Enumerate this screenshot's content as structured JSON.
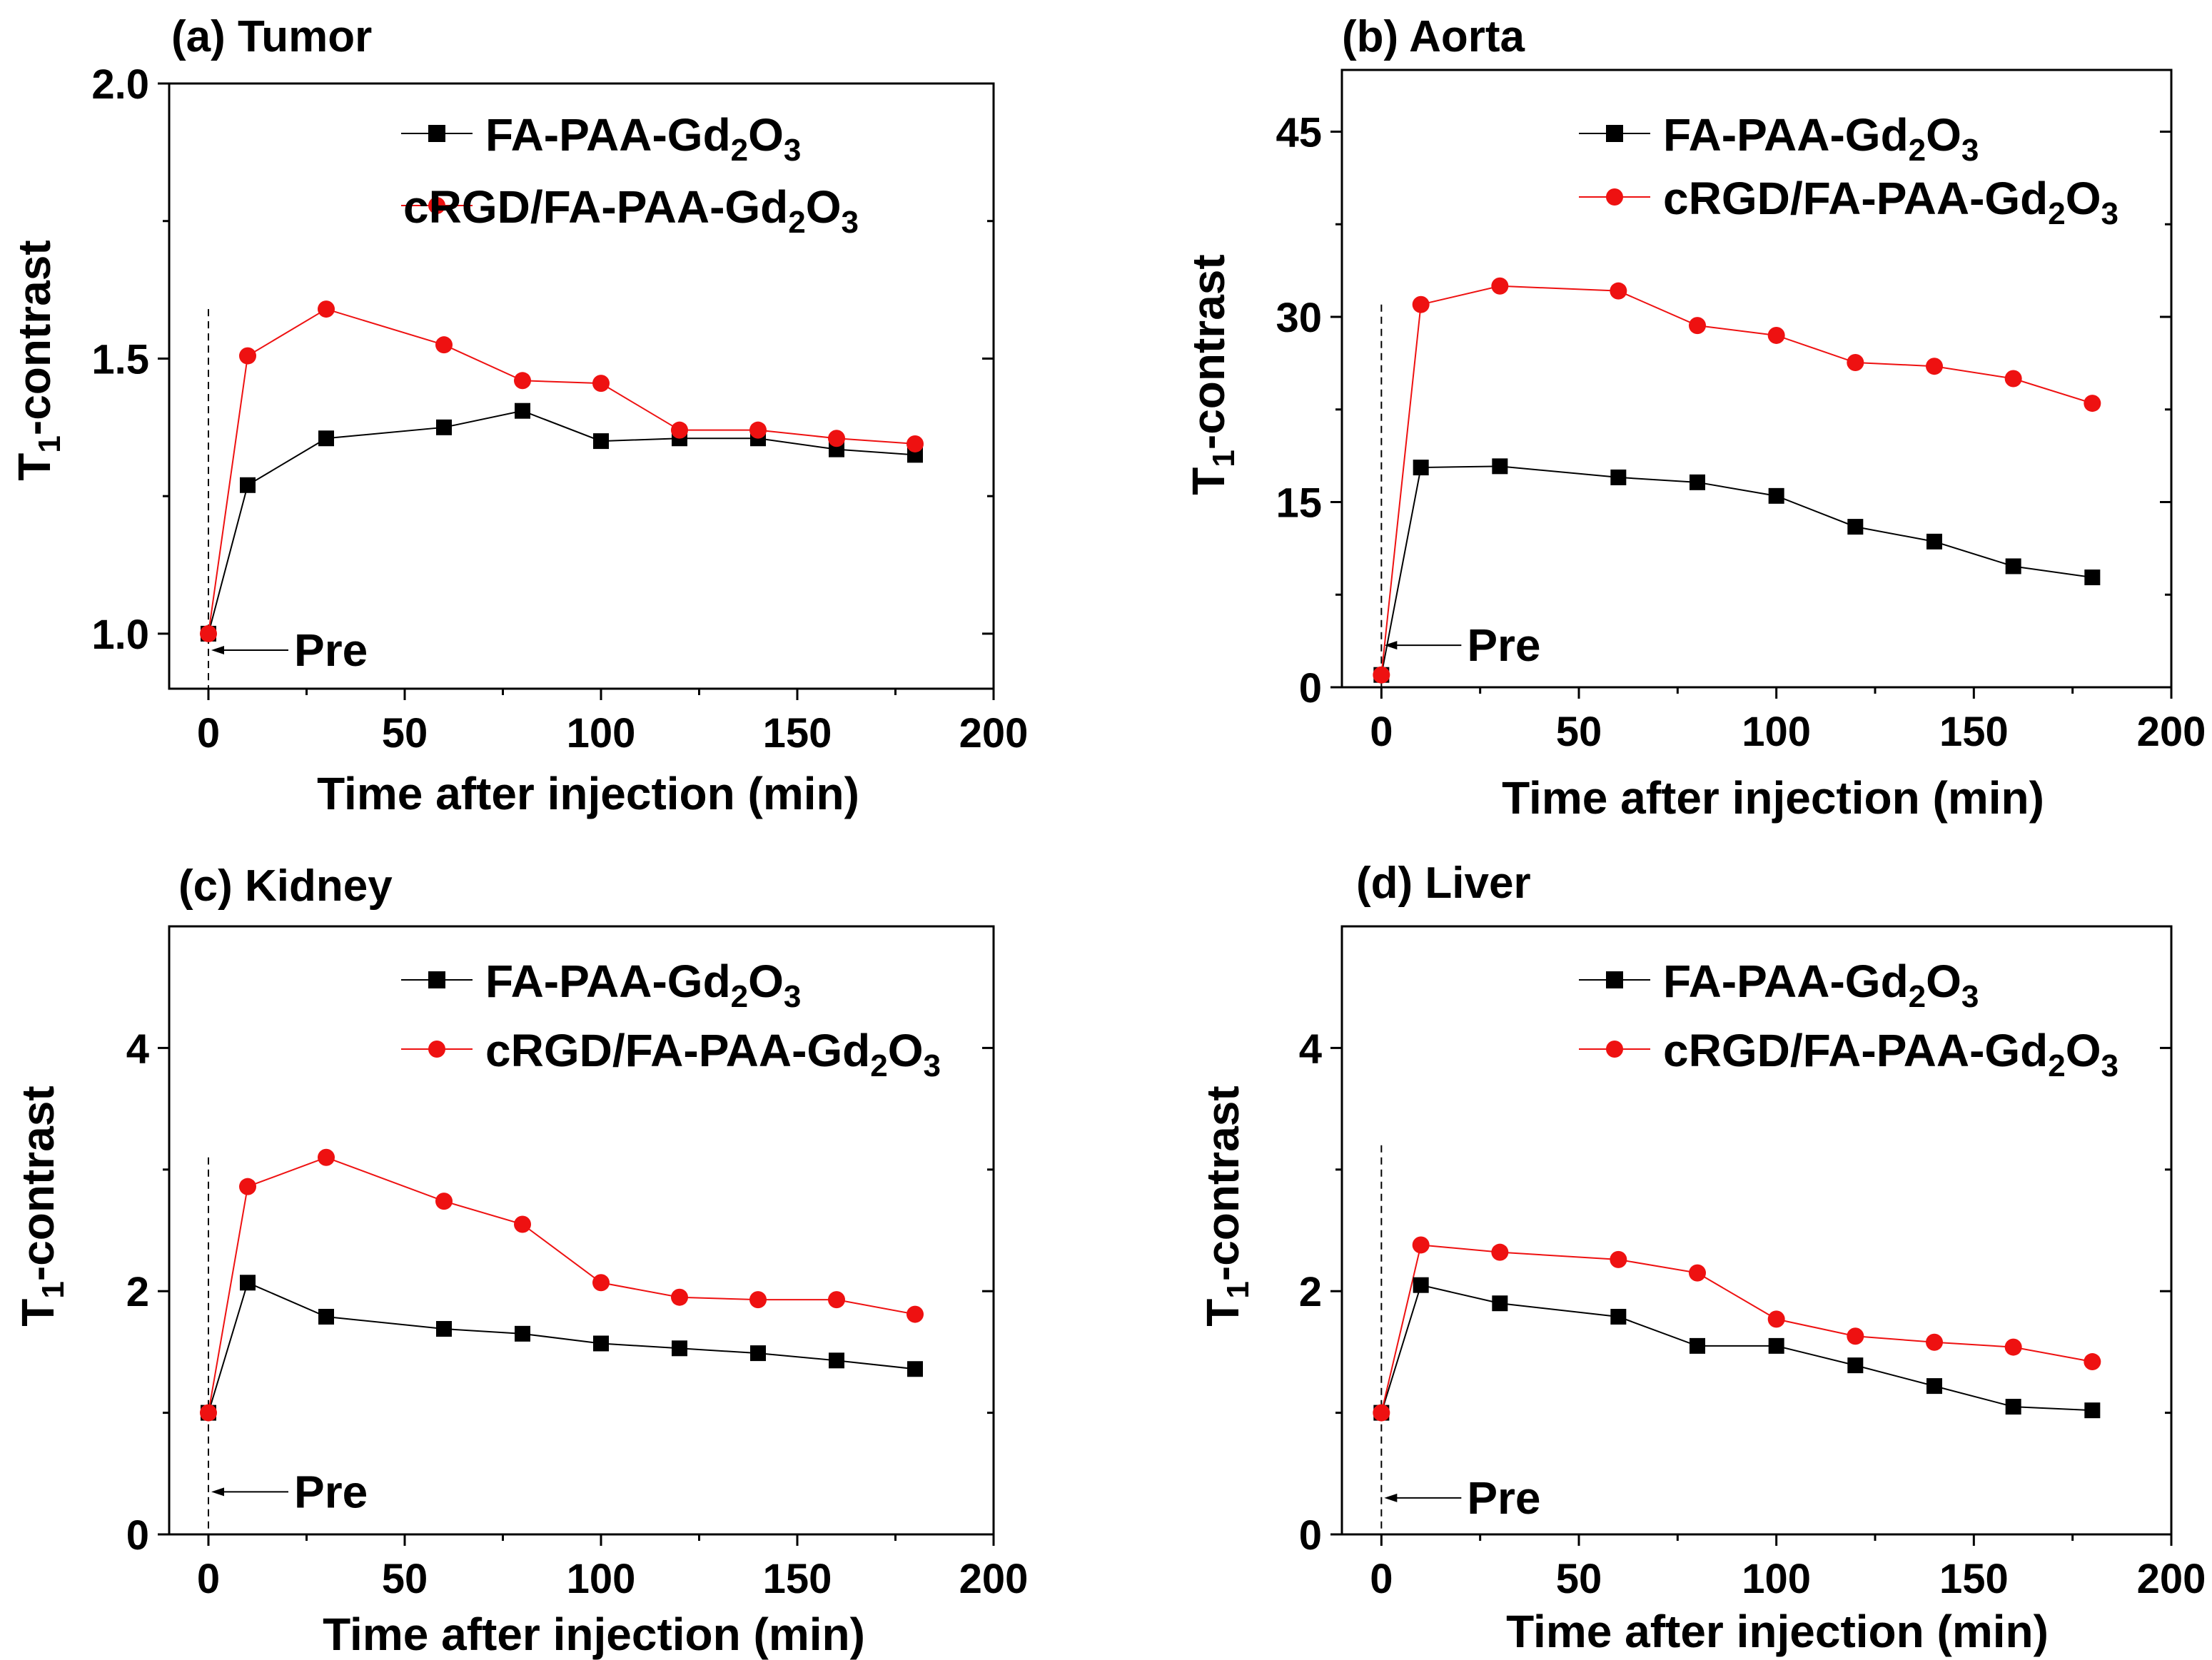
{
  "figure": {
    "series_names": [
      "FA-PAA-Gd2O3",
      "cRGD/FA-PAA-Gd2O3"
    ],
    "colors": {
      "series1": "#000000",
      "series2": "#ee1111",
      "axis": "#000000"
    }
  },
  "chart_data": [
    {
      "type": "line",
      "title": "(a) Tumor",
      "xlabel": "Time after injection (min)",
      "ylabel": "T1-contrast",
      "xlim": [
        -10,
        200
      ],
      "ylim": [
        0.9,
        2.0
      ],
      "xticks": [
        0,
        50,
        100,
        150,
        200
      ],
      "yticks": [
        1.0,
        1.5,
        2.0
      ],
      "ytick_labels": [
        "1.0",
        "1.5",
        "2.0"
      ],
      "annotation": "Pre",
      "annotation_value": [
        0,
        0.97
      ],
      "pre_line_top": 1.59,
      "legend_position": "top-right",
      "x": [
        0,
        10,
        30,
        60,
        80,
        100,
        120,
        140,
        160,
        180
      ],
      "series": [
        {
          "name": "FA-PAA-Gd2O3",
          "marker": "square",
          "values": [
            1.0,
            1.27,
            1.355,
            1.375,
            1.405,
            1.35,
            1.355,
            1.355,
            1.335,
            1.325
          ]
        },
        {
          "name": "cRGD/FA-PAA-Gd2O3",
          "marker": "circle",
          "values": [
            1.0,
            1.505,
            1.59,
            1.525,
            1.46,
            1.455,
            1.37,
            1.37,
            1.355,
            1.345
          ]
        }
      ]
    },
    {
      "type": "line",
      "title": "(b) Aorta",
      "xlabel": "Time after injection (min)",
      "ylabel": "T1-contrast",
      "xlim": [
        -10,
        200
      ],
      "ylim": [
        0,
        50
      ],
      "xticks": [
        0,
        50,
        100,
        150,
        200
      ],
      "yticks": [
        0,
        15,
        30,
        45
      ],
      "ytick_labels": [
        "0",
        "15",
        "30",
        "45"
      ],
      "annotation": "Pre",
      "annotation_value": [
        0,
        3.4
      ],
      "pre_line_top": 31,
      "legend_position": "top-right",
      "x": [
        0,
        10,
        30,
        60,
        80,
        100,
        120,
        140,
        160,
        180
      ],
      "series": [
        {
          "name": "FA-PAA-Gd2O3",
          "marker": "square",
          "values": [
            1.0,
            17.8,
            17.9,
            17.0,
            16.6,
            15.5,
            13.0,
            11.8,
            9.8,
            8.9
          ]
        },
        {
          "name": "cRGD/FA-PAA-Gd2O3",
          "marker": "circle",
          "values": [
            1.0,
            31.0,
            32.5,
            32.1,
            29.3,
            28.5,
            26.3,
            26.0,
            25.0,
            23.0
          ]
        }
      ]
    },
    {
      "type": "line",
      "title": "(c) Kidney",
      "xlabel": "Time after injection (min)",
      "ylabel": "T1-contrast",
      "xlim": [
        -10,
        200
      ],
      "ylim": [
        0,
        5
      ],
      "xticks": [
        0,
        50,
        100,
        150,
        200
      ],
      "yticks": [
        0,
        2,
        4
      ],
      "ytick_labels": [
        "0",
        "2",
        "4"
      ],
      "annotation": "Pre",
      "annotation_value": [
        0,
        0.35
      ],
      "pre_line_top": 3.1,
      "legend_position": "top-right",
      "x": [
        0,
        10,
        30,
        60,
        80,
        100,
        120,
        140,
        160,
        180
      ],
      "series": [
        {
          "name": "FA-PAA-Gd2O3",
          "marker": "square",
          "values": [
            1.0,
            2.07,
            1.79,
            1.69,
            1.65,
            1.57,
            1.53,
            1.49,
            1.43,
            1.36
          ]
        },
        {
          "name": "cRGD/FA-PAA-Gd2O3",
          "marker": "circle",
          "values": [
            1.0,
            2.86,
            3.1,
            2.74,
            2.55,
            2.07,
            1.95,
            1.93,
            1.93,
            1.81
          ]
        }
      ]
    },
    {
      "type": "line",
      "title": "(d) Liver",
      "xlabel": "Time after injection (min)",
      "ylabel": "T1-contrast",
      "xlim": [
        -10,
        200
      ],
      "ylim": [
        0,
        5
      ],
      "xticks": [
        0,
        50,
        100,
        150,
        200
      ],
      "yticks": [
        0,
        2,
        4
      ],
      "ytick_labels": [
        "0",
        "2",
        "4"
      ],
      "annotation": "Pre",
      "annotation_value": [
        0,
        0.3
      ],
      "pre_line_top": 3.2,
      "legend_position": "top-right",
      "x": [
        0,
        10,
        30,
        60,
        80,
        100,
        120,
        140,
        160,
        180
      ],
      "series": [
        {
          "name": "FA-PAA-Gd2O3",
          "marker": "square",
          "values": [
            1.0,
            2.05,
            1.9,
            1.79,
            1.55,
            1.55,
            1.39,
            1.22,
            1.05,
            1.02
          ]
        },
        {
          "name": "cRGD/FA-PAA-Gd2O3",
          "marker": "circle",
          "values": [
            1.0,
            2.38,
            2.32,
            2.26,
            2.15,
            1.77,
            1.63,
            1.58,
            1.54,
            1.42
          ]
        }
      ]
    }
  ]
}
